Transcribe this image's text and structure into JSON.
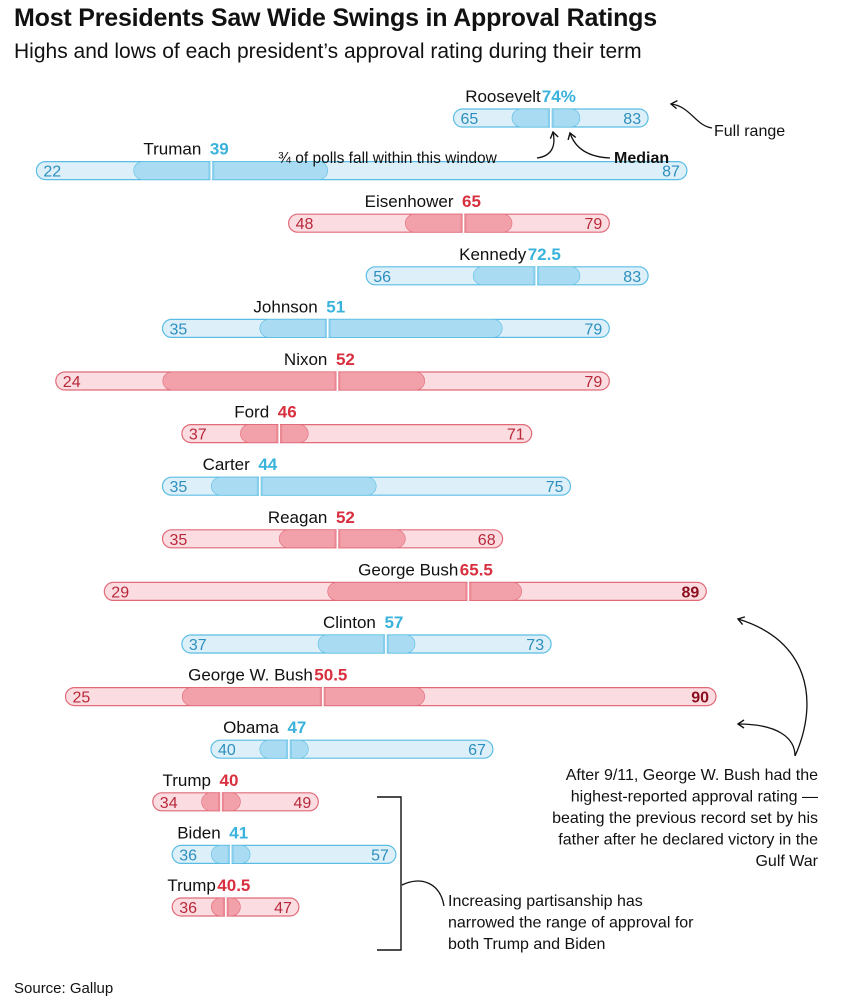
{
  "chart_data": {
    "type": "range",
    "title": "Most Presidents Saw Wide Swings in Approval Ratings",
    "subtitle": "Highs and lows of each president’s approval rating during their term",
    "source": "Source: Gallup",
    "xlim": [
      20,
      90
    ],
    "presidents": [
      {
        "name": "Roosevelt",
        "party": "D",
        "median": 74,
        "median_label": "74%",
        "min": 65,
        "max": 83,
        "q_low": 70,
        "q_high": 77
      },
      {
        "name": "Truman",
        "party": "D",
        "median": 39,
        "median_label": "39",
        "min": 22,
        "max": 87,
        "q_low": 31,
        "q_high": 51
      },
      {
        "name": "Eisenhower",
        "party": "R",
        "median": 65,
        "median_label": "65",
        "min": 48,
        "max": 79,
        "q_low": 59,
        "q_high": 70
      },
      {
        "name": "Kennedy",
        "party": "D",
        "median": 72.5,
        "median_label": "72.5",
        "min": 56,
        "max": 83,
        "q_low": 66,
        "q_high": 77
      },
      {
        "name": "Johnson",
        "party": "D",
        "median": 51,
        "median_label": "51",
        "min": 35,
        "max": 79,
        "q_low": 44,
        "q_high": 69
      },
      {
        "name": "Nixon",
        "party": "R",
        "median": 52,
        "median_label": "52",
        "min": 24,
        "max": 79,
        "q_low": 34,
        "q_high": 61
      },
      {
        "name": "Ford",
        "party": "R",
        "median": 46,
        "median_label": "46",
        "min": 37,
        "max": 71,
        "q_low": 42,
        "q_high": 49
      },
      {
        "name": "Carter",
        "party": "D",
        "median": 44,
        "median_label": "44",
        "min": 35,
        "max": 75,
        "q_low": 39,
        "q_high": 56
      },
      {
        "name": "Reagan",
        "party": "R",
        "median": 52,
        "median_label": "52",
        "min": 35,
        "max": 68,
        "q_low": 46,
        "q_high": 59
      },
      {
        "name": "George Bush",
        "party": "R",
        "median": 65.5,
        "median_label": "65.5",
        "min": 29,
        "max": 89,
        "q_low": 51,
        "q_high": 71
      },
      {
        "name": "Clinton",
        "party": "D",
        "median": 57,
        "median_label": "57",
        "min": 37,
        "max": 73,
        "q_low": 50,
        "q_high": 60
      },
      {
        "name": "George W. Bush",
        "party": "R",
        "median": 50.5,
        "median_label": "50.5",
        "min": 25,
        "max": 90,
        "q_low": 36,
        "q_high": 61
      },
      {
        "name": "Obama",
        "party": "D",
        "median": 47,
        "median_label": "47",
        "min": 40,
        "max": 67,
        "q_low": 44,
        "q_high": 49
      },
      {
        "name": "Trump",
        "party": "R",
        "median": 40,
        "median_label": "40",
        "min": 34,
        "max": 49,
        "q_low": 38,
        "q_high": 42
      },
      {
        "name": "Biden",
        "party": "D",
        "median": 41,
        "median_label": "41",
        "min": 36,
        "max": 57,
        "q_low": 39,
        "q_high": 43
      },
      {
        "name": "Trump",
        "party": "R",
        "median": 40.5,
        "median_label": "40.5",
        "min": 36,
        "max": 47,
        "q_low": 39,
        "q_high": 42
      }
    ],
    "annotations": {
      "full_range": "Full range",
      "quartile_window": "¾ of polls fall within this window",
      "median": "Median",
      "bush_record": [
        "After 9/11, George W. Bush had the",
        "highest-reported approval rating —",
        "beating the previous record set by his",
        "father after he declared victory in the",
        "Gulf War"
      ],
      "partisanship": [
        "Increasing partisanship has",
        "narrowed the range of approval for",
        "both Trump and Biden"
      ]
    },
    "colors": {
      "D_text": "#3ab3dc",
      "D_full_fill": "#ddf0fa",
      "D_full_stroke": "#5bbde3",
      "D_inner_fill": "#a9dcf3",
      "D_num": "#2c8fbd",
      "R_text": "#d8303f",
      "R_full_fill": "#fbdde1",
      "R_full_stroke": "#e06a78",
      "R_inner_fill": "#f2a0aa",
      "R_num": "#b8283a",
      "record_num": "#8b0f1e"
    }
  }
}
